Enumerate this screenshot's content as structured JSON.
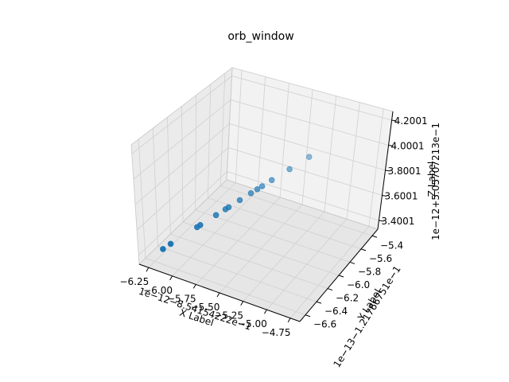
{
  "chart_data": {
    "type": "scatter",
    "title": "orb_window",
    "xlabel": "X Label",
    "ylabel": "Y Label",
    "zlabel": "Z Label",
    "x_offset_text": "1e−12−8.54154222e−1",
    "y_offset_text": "1e−13−1.21766751e−1",
    "z_offset_text": "1e−12+5.05707213e−1",
    "x_ticks": [
      "−6.25",
      "−6.00",
      "−5.75",
      "−5.50",
      "−5.25",
      "−5.00",
      "−4.75"
    ],
    "y_ticks": [
      "−6.6",
      "−6.4",
      "−6.2",
      "−6.0",
      "−5.8",
      "−5.6",
      "−5.4"
    ],
    "z_ticks": [
      "3.4001",
      "3.6001",
      "3.8001",
      "4.0001",
      "4.2001"
    ],
    "x_tick_values": [
      -6.25,
      -6.0,
      -5.75,
      -5.5,
      -5.25,
      -5.0,
      -4.75
    ],
    "y_tick_values": [
      -6.6,
      -6.4,
      -6.2,
      -6.0,
      -5.8,
      -5.6,
      -5.4
    ],
    "z_tick_values": [
      3.4001,
      3.6001,
      3.8001,
      4.0001,
      4.2001
    ],
    "xlim": [
      -6.35,
      -4.65
    ],
    "ylim": [
      -6.7,
      -5.3
    ],
    "zlim": [
      3.33,
      4.27
    ],
    "grid": true,
    "color": "#1f77b4",
    "points": [
      {
        "x": -6.17,
        "y": -6.58,
        "z": 3.44
      },
      {
        "x": -6.12,
        "y": -6.53,
        "z": 3.47
      },
      {
        "x": -5.95,
        "y": -6.36,
        "z": 3.565
      },
      {
        "x": -5.93,
        "y": -6.34,
        "z": 3.577
      },
      {
        "x": -5.83,
        "y": -6.24,
        "z": 3.633
      },
      {
        "x": -5.77,
        "y": -6.18,
        "z": 3.666
      },
      {
        "x": -5.75,
        "y": -6.16,
        "z": 3.677
      },
      {
        "x": -5.68,
        "y": -6.09,
        "z": 3.717
      },
      {
        "x": -5.61,
        "y": -6.02,
        "z": 3.755
      },
      {
        "x": -5.57,
        "y": -5.98,
        "z": 3.777
      },
      {
        "x": -5.54,
        "y": -5.95,
        "z": 3.794
      },
      {
        "x": -5.48,
        "y": -5.89,
        "z": 3.828
      },
      {
        "x": -5.37,
        "y": -5.78,
        "z": 3.887
      },
      {
        "x": -5.25,
        "y": -5.66,
        "z": 3.954
      }
    ]
  },
  "colors": {
    "pane_left": "#ebebeb",
    "pane_right": "#f2f2f2",
    "pane_floor": "#e6e6e6",
    "grid": "#d0d0d0",
    "axis": "#000000",
    "point": "#1f77b4"
  }
}
